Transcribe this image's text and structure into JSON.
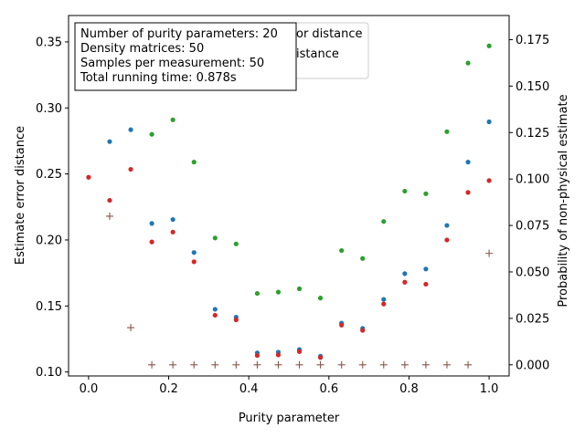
{
  "chart_data": {
    "type": "scatter",
    "xlabel": "Purity parameter",
    "ylabel": "Estimate error distance",
    "y2label": "Probability of non-physical estimate",
    "xlim": [
      -0.05,
      1.05
    ],
    "ylim": [
      0.097,
      0.37
    ],
    "y2lim": [
      -0.006,
      0.188
    ],
    "x_ticks": [
      0.0,
      0.2,
      0.4,
      0.6,
      0.8,
      1.0
    ],
    "x_tick_labels": [
      "0.0",
      "0.2",
      "0.4",
      "0.6",
      "0.8",
      "1.0"
    ],
    "y_ticks": [
      0.1,
      0.15,
      0.2,
      0.25,
      0.3,
      0.35
    ],
    "y_tick_labels": [
      "0.10",
      "0.15",
      "0.20",
      "0.25",
      "0.30",
      "0.35"
    ],
    "y2_ticks": [
      0.0,
      0.025,
      0.05,
      0.075,
      0.1,
      0.125,
      0.15,
      0.175
    ],
    "y2_tick_labels": [
      "0.000",
      "0.025",
      "0.050",
      "0.075",
      "0.100",
      "0.125",
      "0.150",
      "0.175"
    ],
    "grid": false,
    "legend_placement": "top-left",
    "legend_visible_fragments": [
      "or distance",
      "istance"
    ],
    "info_box": [
      "Number of purity parameters: 20",
      "Density matrices: 50",
      "Samples per measurement: 50",
      "Total running time:  0.878s"
    ],
    "x": [
      0.0,
      0.0526,
      0.1053,
      0.1579,
      0.2105,
      0.2632,
      0.3158,
      0.3684,
      0.4211,
      0.4737,
      0.5263,
      0.5789,
      0.6316,
      0.6842,
      0.7368,
      0.7895,
      0.8421,
      0.8947,
      0.9474,
      1.0
    ],
    "series": [
      {
        "color": "#1f77b4",
        "marker": "dot",
        "axis": "left",
        "values": [
          null,
          0.2745,
          0.2835,
          0.2125,
          0.2155,
          0.1905,
          0.1475,
          0.1415,
          0.1145,
          0.115,
          0.117,
          0.112,
          0.137,
          0.133,
          0.155,
          0.1745,
          0.178,
          0.211,
          0.259,
          0.2895
        ]
      },
      {
        "color": "#2ca02c",
        "marker": "dot",
        "axis": "left",
        "values": [
          null,
          null,
          null,
          0.28,
          0.291,
          0.259,
          0.2015,
          0.197,
          0.1595,
          0.1605,
          0.163,
          0.156,
          0.192,
          0.186,
          0.214,
          0.237,
          0.235,
          0.282,
          0.334,
          0.347
        ]
      },
      {
        "color": "#d62728",
        "marker": "dot",
        "axis": "left",
        "values": [
          0.2475,
          0.23,
          0.2535,
          0.1985,
          0.206,
          0.1835,
          0.143,
          0.1395,
          0.1125,
          0.113,
          0.1155,
          0.111,
          0.1355,
          0.1315,
          0.1515,
          0.168,
          0.1665,
          0.2,
          0.236,
          0.245
        ]
      },
      {
        "color": "#8c564b",
        "marker": "plus",
        "axis": "right",
        "values": [
          null,
          0.08,
          0.02,
          0.0,
          0.0,
          0.0,
          0.0,
          0.0,
          0.0,
          0.0,
          0.0,
          0.0,
          0.0,
          0.0,
          0.0,
          0.0,
          0.0,
          0.0,
          0.0,
          0.06
        ]
      }
    ]
  }
}
